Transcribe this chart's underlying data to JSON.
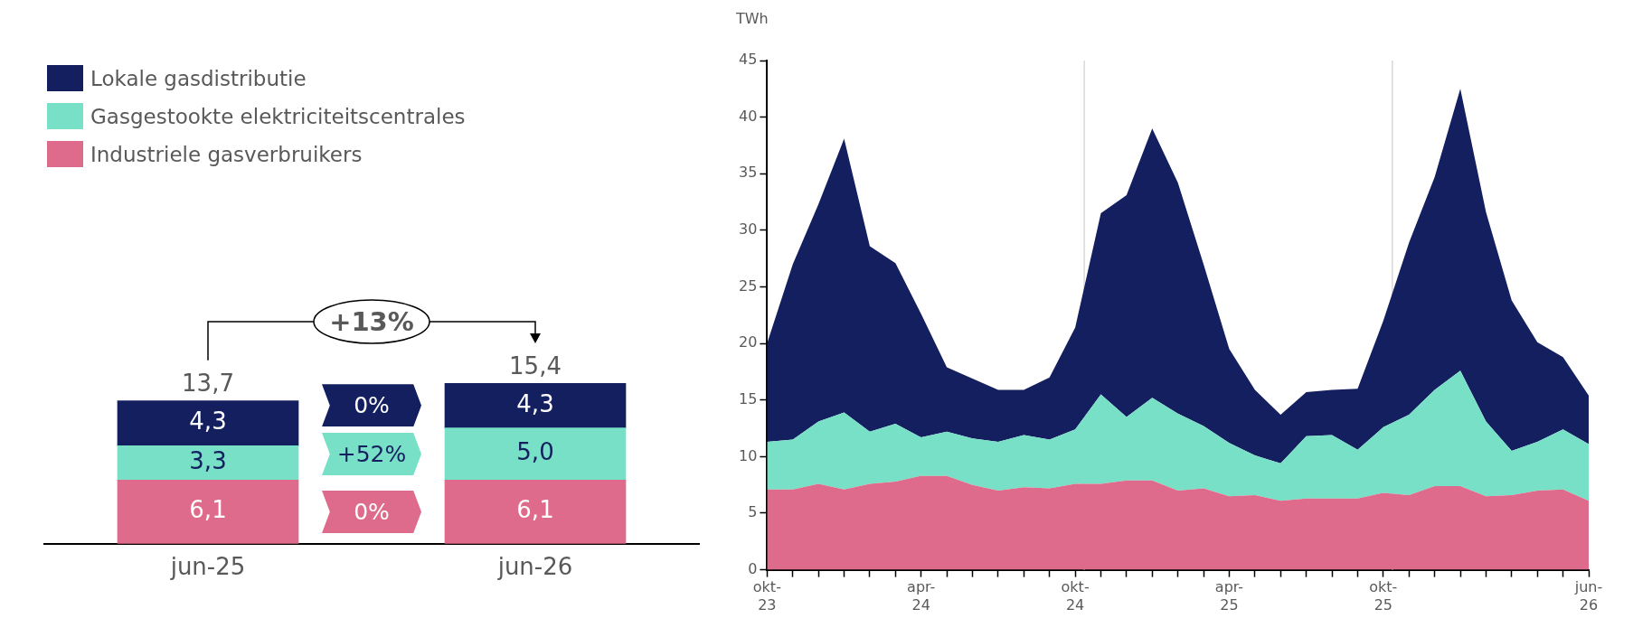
{
  "chart_data": [
    {
      "type": "bar",
      "stacked": true,
      "legend": "top left",
      "categories": [
        "jun-25",
        "jun-26"
      ],
      "series": [
        {
          "name": "Industriele gasverbruikers",
          "color": "#de6b8b",
          "values": [
            6.1,
            6.1
          ],
          "value_labels": [
            "6,1",
            "6,1"
          ]
        },
        {
          "name": "Gasgestookte elektriciteitscentrales",
          "color": "#78e0c6",
          "values": [
            3.3,
            5.0
          ],
          "value_labels": [
            "3,3",
            "5,0"
          ]
        },
        {
          "name": "Lokale gasdistributie",
          "color": "#131f5e",
          "values": [
            4.3,
            4.3
          ],
          "value_labels": [
            "4,3",
            "4,3"
          ]
        }
      ],
      "totals": [
        "13,7",
        "15,4"
      ],
      "annotations": [
        "+13%",
        "0%",
        "+52%",
        "0%"
      ]
    },
    {
      "type": "area",
      "stacked": true,
      "ylabel": "TWh",
      "ylim": [
        0,
        45
      ],
      "yticks": [
        0,
        5,
        10,
        15,
        20,
        25,
        30,
        35,
        40,
        45
      ],
      "categories": [
        "okt-23",
        null,
        null,
        null,
        null,
        null,
        "apr-24",
        null,
        null,
        null,
        null,
        null,
        "okt-24",
        null,
        null,
        null,
        null,
        null,
        "apr-25",
        null,
        null,
        null,
        null,
        null,
        "okt-25",
        null,
        null,
        null,
        null,
        null,
        null,
        null,
        "jun-26"
      ],
      "series": [
        {
          "color": "#de6b8b",
          "values": [
            7.1,
            7.1,
            7.6,
            7.1,
            7.6,
            7.8,
            8.3,
            8.3,
            7.5,
            7.0,
            7.3,
            7.2,
            7.6,
            7.6,
            7.9,
            7.9,
            7.0,
            7.2,
            6.5,
            6.6,
            6.1,
            6.3,
            6.3,
            6.3,
            6.8,
            6.6,
            7.4,
            7.4,
            6.5,
            6.6,
            7.0,
            7.1,
            6.1
          ]
        },
        {
          "color": "#78e0c6",
          "values": [
            4.2,
            4.4,
            5.5,
            6.8,
            4.6,
            5.1,
            3.4,
            3.9,
            4.1,
            4.3,
            4.6,
            4.3,
            4.8,
            7.9,
            5.6,
            7.3,
            6.8,
            5.5,
            4.7,
            3.5,
            3.3,
            5.5,
            5.6,
            4.3,
            5.8,
            7.1,
            8.5,
            10.2,
            6.6,
            3.9,
            4.3,
            5.3,
            5.0
          ]
        },
        {
          "color": "#131f5e",
          "values": [
            8.7,
            15.5,
            19.2,
            24.2,
            16.4,
            14.2,
            10.9,
            5.7,
            5.3,
            4.6,
            4.0,
            5.5,
            9.0,
            16.0,
            19.6,
            23.8,
            20.4,
            14.3,
            8.3,
            5.8,
            4.3,
            3.9,
            4.0,
            5.4,
            9.4,
            15.2,
            18.8,
            24.9,
            18.5,
            13.3,
            8.8,
            6.4,
            4.3
          ]
        }
      ],
      "ref_lines": [
        {
          "axis": "x",
          "value": "okt-24",
          "color": "#d9d9d9"
        },
        {
          "axis": "x",
          "value": "okt-25",
          "color": "#d9d9d9"
        }
      ]
    }
  ]
}
